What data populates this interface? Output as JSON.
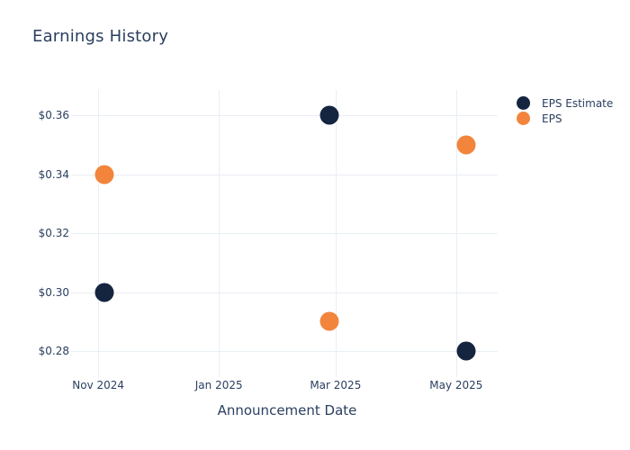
{
  "style": {
    "text_color": "#2a3f5f",
    "grid_color": "#e9eef4",
    "background": "#ffffff"
  },
  "chart_data": {
    "type": "scatter",
    "title": "Earnings History",
    "xlabel": "Announcement Date",
    "ylabel": "",
    "grid": true,
    "legend_position": "right",
    "x_axis": {
      "range": [
        "2024-10-21",
        "2025-05-22"
      ],
      "ticks": [
        {
          "label": "Nov 2024",
          "date": "2024-11-01"
        },
        {
          "label": "Jan 2025",
          "date": "2025-01-01"
        },
        {
          "label": "Mar 2025",
          "date": "2025-03-01"
        },
        {
          "label": "May 2025",
          "date": "2025-05-01"
        }
      ]
    },
    "y_axis": {
      "range": [
        0.273,
        0.3686
      ],
      "ticks": [
        {
          "label": "$0.36",
          "value": 0.36
        },
        {
          "label": "$0.34",
          "value": 0.34
        },
        {
          "label": "$0.32",
          "value": 0.32
        },
        {
          "label": "$0.30",
          "value": 0.3
        },
        {
          "label": "$0.28",
          "value": 0.28
        }
      ]
    },
    "series": [
      {
        "name": "EPS Estimate",
        "color": "#15243f",
        "points": [
          {
            "date": "2024-11-04",
            "value": 0.3
          },
          {
            "date": "2025-02-26",
            "value": 0.36
          },
          {
            "date": "2025-05-06",
            "value": 0.28
          }
        ]
      },
      {
        "name": "EPS",
        "color": "#f2843c",
        "points": [
          {
            "date": "2024-11-04",
            "value": 0.34
          },
          {
            "date": "2025-02-26",
            "value": 0.29
          },
          {
            "date": "2025-05-06",
            "value": 0.35
          }
        ]
      }
    ]
  }
}
